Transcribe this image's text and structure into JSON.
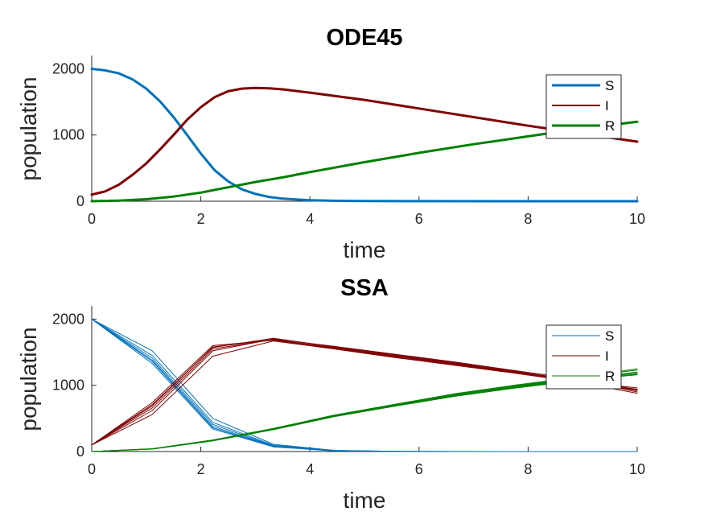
{
  "chart_data": [
    {
      "type": "line",
      "title": "ODE45",
      "xlabel": "time",
      "ylabel": "population",
      "xlim": [
        0,
        10
      ],
      "ylim": [
        0,
        2200
      ],
      "xticks": [
        "0",
        "2",
        "4",
        "6",
        "8",
        "10"
      ],
      "yticks": [
        "0",
        "1000",
        "2000"
      ],
      "grid": false,
      "legend": "top-right",
      "series": [
        {
          "name": "S",
          "color": "#0072BD",
          "x": [
            0,
            0.25,
            0.5,
            0.75,
            1.0,
            1.25,
            1.5,
            1.75,
            2.0,
            2.25,
            2.5,
            2.75,
            3.0,
            3.25,
            3.5,
            4.0,
            4.5,
            5.0,
            6.0,
            8.0,
            10.0
          ],
          "y": [
            2000,
            1975,
            1930,
            1840,
            1700,
            1510,
            1270,
            1000,
            720,
            470,
            300,
            180,
            110,
            65,
            40,
            15,
            6,
            3,
            1,
            0,
            0
          ]
        },
        {
          "name": "I",
          "color": "#7F0000",
          "x": [
            0,
            0.25,
            0.5,
            0.75,
            1.0,
            1.25,
            1.5,
            1.75,
            2.0,
            2.25,
            2.5,
            2.75,
            3.0,
            3.25,
            3.5,
            4.0,
            5.0,
            6.0,
            7.0,
            8.0,
            9.0,
            10.0
          ],
          "y": [
            100,
            150,
            250,
            400,
            570,
            780,
            1000,
            1230,
            1420,
            1570,
            1660,
            1700,
            1710,
            1705,
            1690,
            1640,
            1530,
            1400,
            1270,
            1140,
            1020,
            900
          ]
        },
        {
          "name": "R",
          "color": "#008000",
          "x": [
            0,
            0.5,
            1.0,
            1.5,
            2.0,
            2.5,
            3.0,
            3.5,
            4.0,
            5.0,
            6.0,
            7.0,
            8.0,
            9.0,
            10.0
          ],
          "y": [
            0,
            10,
            30,
            70,
            130,
            210,
            290,
            360,
            440,
            590,
            730,
            860,
            980,
            1100,
            1200
          ]
        }
      ]
    },
    {
      "type": "line",
      "title": "SSA",
      "xlabel": "time",
      "ylabel": "population",
      "xlim": [
        0,
        10
      ],
      "ylim": [
        0,
        2200
      ],
      "xticks": [
        "0",
        "2",
        "4",
        "6",
        "8",
        "10"
      ],
      "yticks": [
        "0",
        "1000",
        "2000"
      ],
      "grid": false,
      "legend": "top-right",
      "x": [
        0,
        1.11,
        2.22,
        3.33,
        4.44,
        5.56,
        6.67,
        7.78,
        8.89,
        10.0
      ],
      "series": [
        {
          "name": "S",
          "color": "#0072BD",
          "runs": [
            [
              2000,
              1380,
              380,
              80,
              12,
              2,
              0,
              0,
              0,
              0
            ],
            [
              2000,
              1450,
              440,
              95,
              15,
              3,
              0,
              0,
              0,
              0
            ],
            [
              2000,
              1330,
              340,
              70,
              10,
              2,
              0,
              0,
              0,
              0
            ],
            [
              2000,
              1520,
              500,
              110,
              18,
              3,
              1,
              0,
              0,
              0
            ],
            [
              2000,
              1410,
              410,
              88,
              13,
              2,
              0,
              0,
              0,
              0
            ],
            [
              2000,
              1360,
              360,
              76,
              11,
              2,
              0,
              0,
              0,
              0
            ]
          ]
        },
        {
          "name": "I",
          "color": "#7F0000",
          "runs": [
            [
              100,
              690,
              1580,
              1690,
              1570,
              1450,
              1330,
              1200,
              1080,
              940
            ],
            [
              100,
              620,
              1520,
              1700,
              1590,
              1470,
              1350,
              1220,
              1090,
              900
            ],
            [
              100,
              740,
              1600,
              1680,
              1560,
              1430,
              1310,
              1190,
              1060,
              960
            ],
            [
              100,
              560,
              1440,
              1670,
              1550,
              1420,
              1300,
              1180,
              1050,
              880
            ],
            [
              100,
              710,
              1570,
              1710,
              1580,
              1460,
              1340,
              1210,
              1070,
              920
            ],
            [
              100,
              660,
              1550,
              1690,
              1565,
              1440,
              1320,
              1195,
              1075,
              930
            ]
          ]
        },
        {
          "name": "R",
          "color": "#008000",
          "runs": [
            [
              0,
              40,
              170,
              340,
              540,
              700,
              860,
              990,
              1100,
              1200
            ],
            [
              0,
              38,
              165,
              335,
              530,
              690,
              840,
              970,
              1080,
              1170
            ],
            [
              0,
              42,
              175,
              350,
              550,
              715,
              875,
              1005,
              1120,
              1230
            ],
            [
              0,
              36,
              160,
              330,
              525,
              685,
              835,
              960,
              1070,
              1160
            ],
            [
              0,
              41,
              172,
              345,
              545,
              705,
              865,
              995,
              1115,
              1250
            ],
            [
              0,
              39,
              168,
              338,
              535,
              695,
              850,
              980,
              1090,
              1185
            ]
          ]
        }
      ]
    }
  ]
}
